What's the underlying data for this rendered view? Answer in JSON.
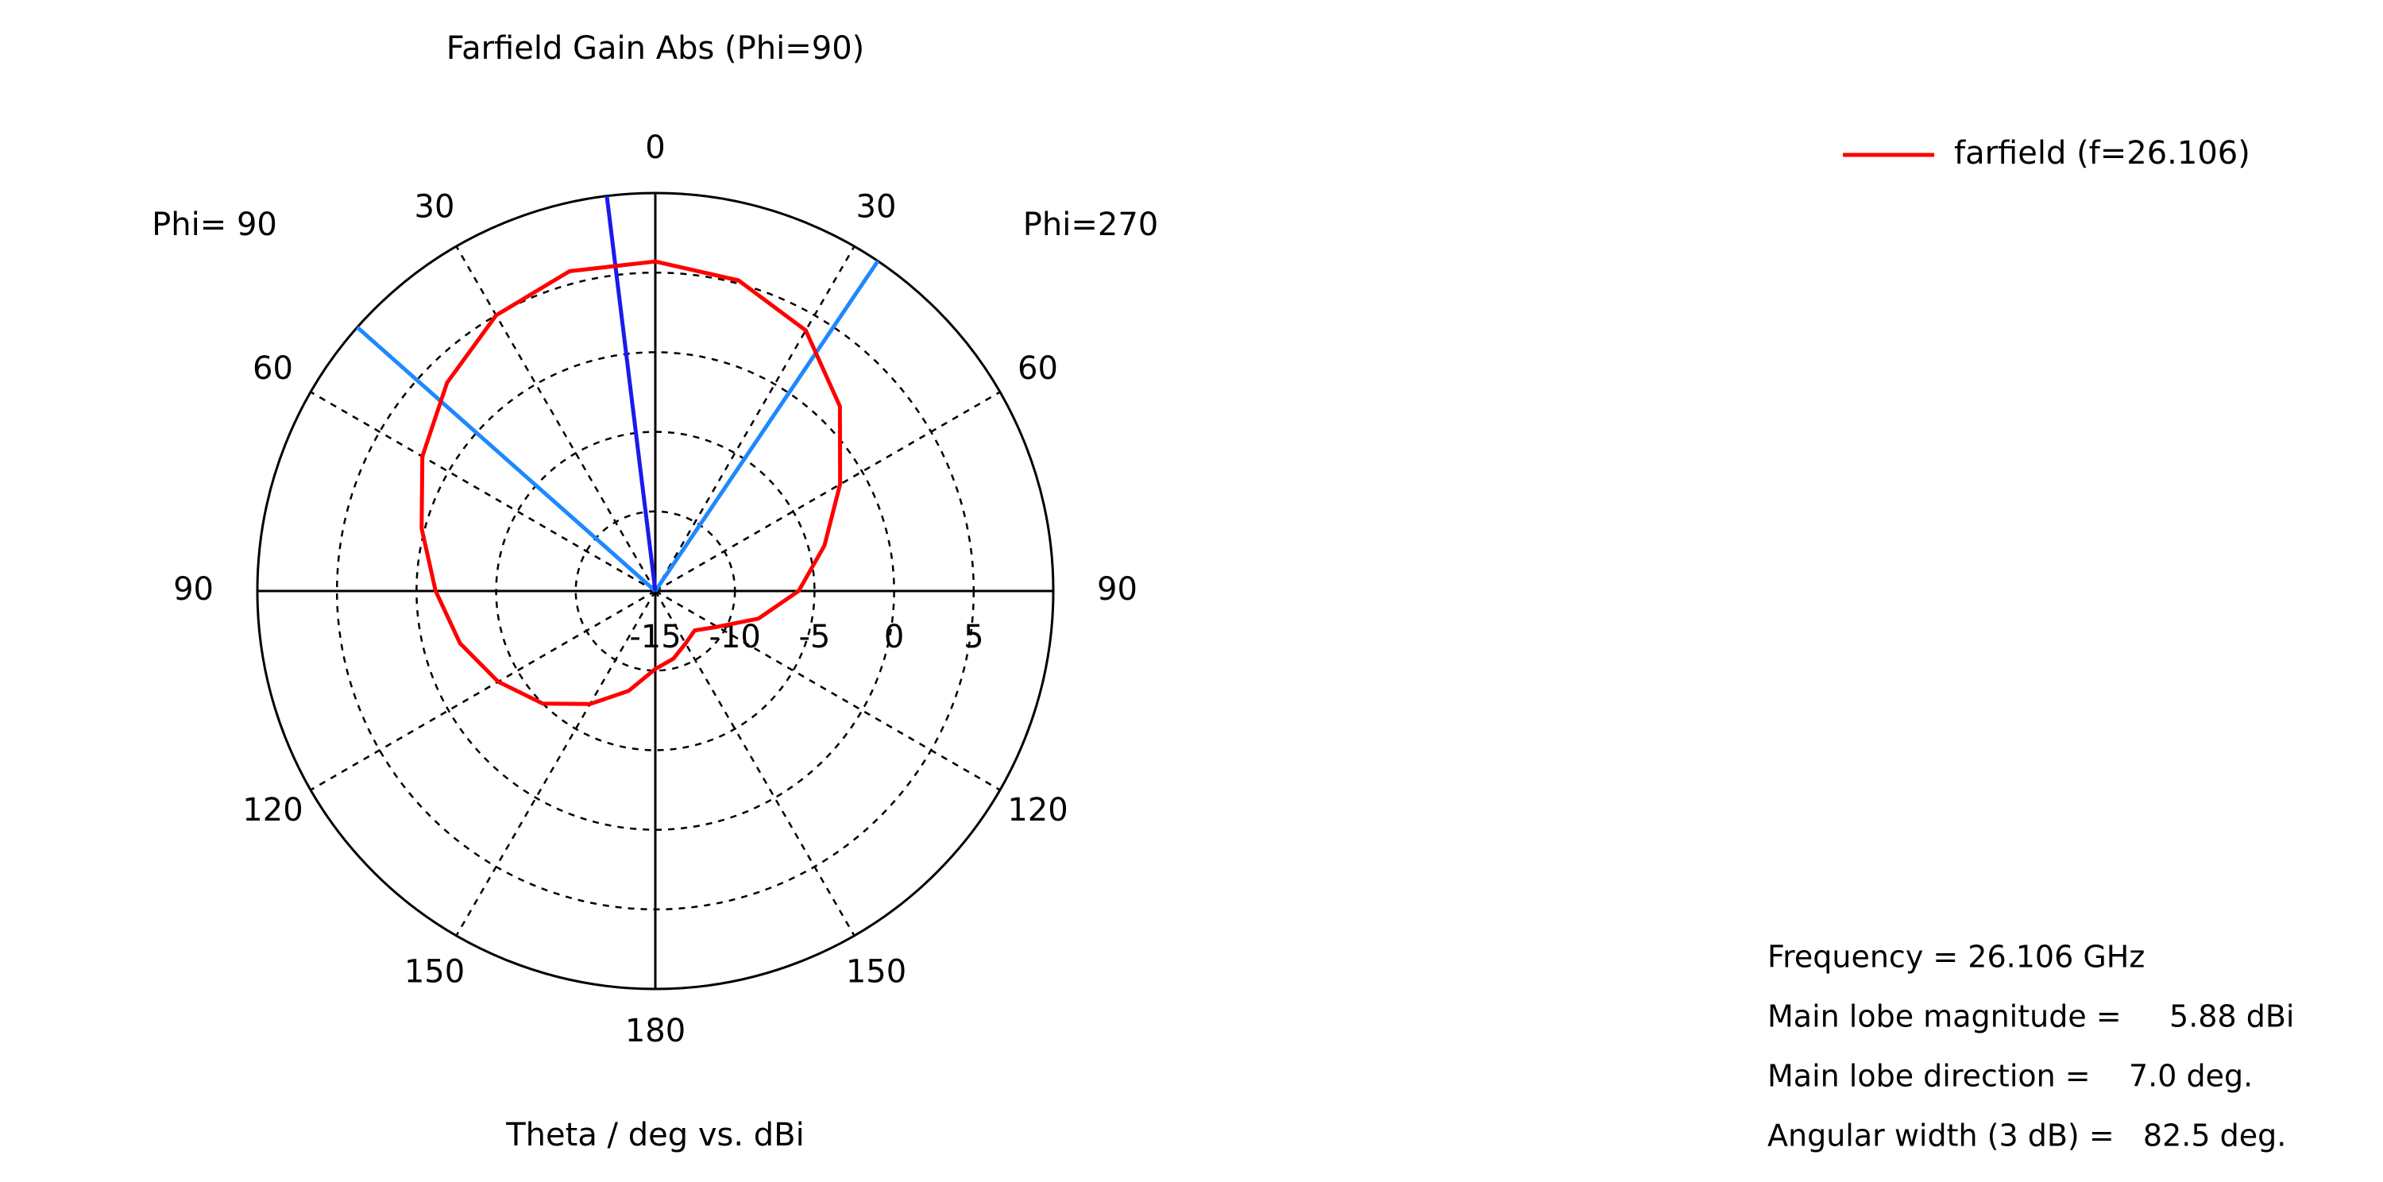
{
  "chart_data": {
    "type": "polar",
    "title": "Farfield Gain Abs (Phi=90)",
    "axis_label": "Theta / deg vs. dBi",
    "left_label": "Phi= 90",
    "right_label": "Phi=270",
    "rlim": [
      -15,
      10
    ],
    "rticks": [
      -15,
      -10,
      -5,
      0,
      5
    ],
    "angle_ticks": [
      0,
      30,
      60,
      90,
      120,
      150,
      180,
      {
        "value": 210,
        "label": "150"
      },
      {
        "value": 240,
        "label": "120"
      },
      {
        "value": 270,
        "label": "90"
      },
      {
        "value": 300,
        "label": "60"
      },
      {
        "value": 330,
        "label": "30"
      }
    ],
    "series": [
      {
        "name": "farfield (f=26.106)",
        "color": "#ff0000",
        "x": [
          0,
          15,
          30,
          45,
          60,
          75,
          90,
          105,
          120,
          135,
          150,
          165,
          180,
          195,
          210,
          225,
          240,
          255,
          270,
          285,
          300,
          315,
          330,
          345
        ],
        "values": [
          5.7,
          5.2,
          3.9,
          1.4,
          -1.6,
          -4.0,
          -6.0,
          -8.3,
          -10.5,
          -11.5,
          -11.2,
          -10.6,
          -10.1,
          -8.5,
          -6.8,
          -5.0,
          -3.6,
          -2.3,
          -1.2,
          0.2,
          1.9,
          3.5,
          5.0,
          5.8
        ]
      }
    ],
    "main_lobe_angle": 353,
    "main_lobe_color": "#1a1aee",
    "beam_edges": [
      311.5,
      34
    ],
    "beam_color": "#1e88ff",
    "info": [
      "Frequency = 26.106 GHz",
      "Main lobe magnitude =     5.88 dBi",
      "Main lobe direction =    7.0 deg.",
      "Angular width (3 dB) =   82.5 deg."
    ]
  }
}
